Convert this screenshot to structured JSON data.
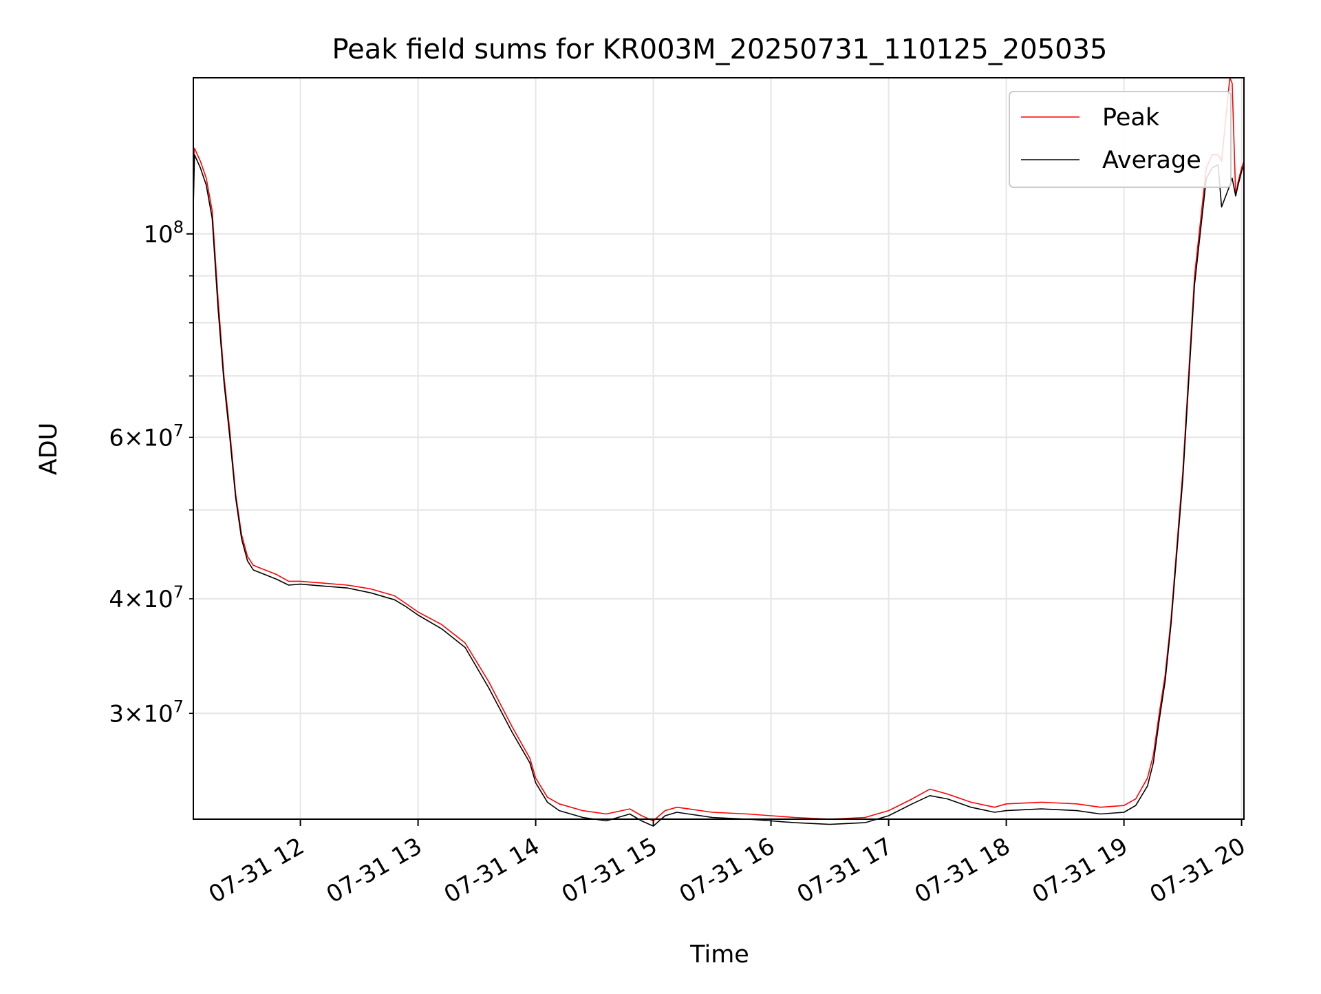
{
  "chart_data": {
    "type": "line",
    "title": "Peak field sums for KR003M_20250731_110125_205035",
    "xlabel": "Time",
    "ylabel": "ADU",
    "x_unit": "hours",
    "y_scale": "log",
    "grid": true,
    "legend": "top-right",
    "xlim": [
      11.09,
      20.02
    ],
    "ylim": [
      23000000,
      148000000
    ],
    "x_ticks": [
      {
        "value": 12,
        "label": "07-31 12"
      },
      {
        "value": 13,
        "label": "07-31 13"
      },
      {
        "value": 14,
        "label": "07-31 14"
      },
      {
        "value": 15,
        "label": "07-31 15"
      },
      {
        "value": 16,
        "label": "07-31 16"
      },
      {
        "value": 17,
        "label": "07-31 17"
      },
      {
        "value": 18,
        "label": "07-31 18"
      },
      {
        "value": 19,
        "label": "07-31 19"
      },
      {
        "value": 20,
        "label": "07-31 20"
      }
    ],
    "y_ticks_major": [
      {
        "value": 100000000,
        "base": "10",
        "exp": "8",
        "mantissa": ""
      }
    ],
    "y_ticks_minor": [
      {
        "value": 30000000,
        "mantissa": "3",
        "base": "10",
        "exp": "7"
      },
      {
        "value": 40000000,
        "mantissa": "4",
        "base": "10",
        "exp": "7"
      },
      {
        "value": 60000000,
        "mantissa": "6",
        "base": "10",
        "exp": "7"
      }
    ],
    "y_ticks_minor_unlabeled": [
      50000000,
      70000000,
      80000000,
      90000000
    ],
    "series": [
      {
        "name": "Peak",
        "color": "#ff0000",
        "x": [
          11.09,
          11.1,
          11.15,
          11.2,
          11.25,
          11.3,
          11.35,
          11.4,
          11.45,
          11.5,
          11.55,
          11.6,
          11.7,
          11.8,
          11.9,
          12.0,
          12.2,
          12.4,
          12.6,
          12.8,
          12.9,
          13.0,
          13.2,
          13.4,
          13.6,
          13.8,
          13.95,
          14.0,
          14.1,
          14.2,
          14.4,
          14.6,
          14.8,
          14.9,
          15.0,
          15.05,
          15.1,
          15.2,
          15.3,
          15.5,
          15.8,
          16.0,
          16.2,
          16.5,
          16.8,
          17.0,
          17.2,
          17.35,
          17.5,
          17.7,
          17.9,
          18.0,
          18.3,
          18.6,
          18.8,
          19.0,
          19.1,
          19.2,
          19.25,
          19.3,
          19.35,
          19.4,
          19.5,
          19.6,
          19.7,
          19.75,
          19.8,
          19.83,
          19.9,
          19.92,
          19.95,
          19.97,
          20.0,
          20.02
        ],
        "y": [
          120000000,
          124000000,
          120000000,
          115000000,
          106000000,
          85000000,
          70000000,
          61000000,
          52000000,
          47000000,
          44500000,
          43500000,
          43000000,
          42500000,
          41800000,
          41800000,
          41600000,
          41400000,
          41000000,
          40300000,
          39500000,
          38700000,
          37500000,
          35800000,
          32500000,
          29000000,
          26800000,
          25500000,
          24300000,
          23900000,
          23500000,
          23300000,
          23600000,
          23200000,
          22900000,
          23200000,
          23500000,
          23700000,
          23600000,
          23400000,
          23300000,
          23200000,
          23100000,
          23000000,
          23100000,
          23500000,
          24200000,
          24800000,
          24500000,
          24000000,
          23700000,
          23900000,
          24000000,
          23900000,
          23700000,
          23800000,
          24200000,
          25500000,
          27000000,
          30000000,
          33000000,
          38000000,
          55000000,
          90000000,
          118000000,
          122000000,
          122000000,
          120000000,
          148000000,
          146000000,
          110000000,
          114000000,
          118000000,
          120000000
        ]
      },
      {
        "name": "Average",
        "color": "#000000",
        "x": [
          11.09,
          11.1,
          11.15,
          11.2,
          11.25,
          11.3,
          11.35,
          11.4,
          11.45,
          11.5,
          11.55,
          11.6,
          11.7,
          11.8,
          11.9,
          12.0,
          12.2,
          12.4,
          12.6,
          12.8,
          12.9,
          13.0,
          13.2,
          13.4,
          13.6,
          13.8,
          13.95,
          14.0,
          14.1,
          14.2,
          14.4,
          14.6,
          14.8,
          14.9,
          15.0,
          15.05,
          15.1,
          15.2,
          15.3,
          15.5,
          15.8,
          16.0,
          16.2,
          16.5,
          16.8,
          17.0,
          17.2,
          17.35,
          17.5,
          17.7,
          17.9,
          18.0,
          18.3,
          18.6,
          18.8,
          19.0,
          19.1,
          19.2,
          19.25,
          19.3,
          19.35,
          19.4,
          19.5,
          19.6,
          19.7,
          19.75,
          19.8,
          19.83,
          19.9,
          19.92,
          19.95,
          19.97,
          20.0,
          20.02
        ],
        "y": [
          107000000,
          122000000,
          118000000,
          113000000,
          104000000,
          83000000,
          69000000,
          60000000,
          51500000,
          46500000,
          44000000,
          43000000,
          42500000,
          42000000,
          41400000,
          41500000,
          41300000,
          41100000,
          40600000,
          39900000,
          39200000,
          38400000,
          37100000,
          35400000,
          32000000,
          28600000,
          26500000,
          25200000,
          24000000,
          23500000,
          23100000,
          22900000,
          23300000,
          22900000,
          22600000,
          22900000,
          23200000,
          23400000,
          23300000,
          23100000,
          23000000,
          22900000,
          22800000,
          22700000,
          22800000,
          23200000,
          23900000,
          24400000,
          24200000,
          23700000,
          23400000,
          23500000,
          23600000,
          23500000,
          23300000,
          23400000,
          23800000,
          25000000,
          26500000,
          29500000,
          32500000,
          37500000,
          54000000,
          88000000,
          115000000,
          118000000,
          119000000,
          107000000,
          113000000,
          115000000,
          110000000,
          113000000,
          117000000,
          119000000
        ]
      }
    ]
  }
}
